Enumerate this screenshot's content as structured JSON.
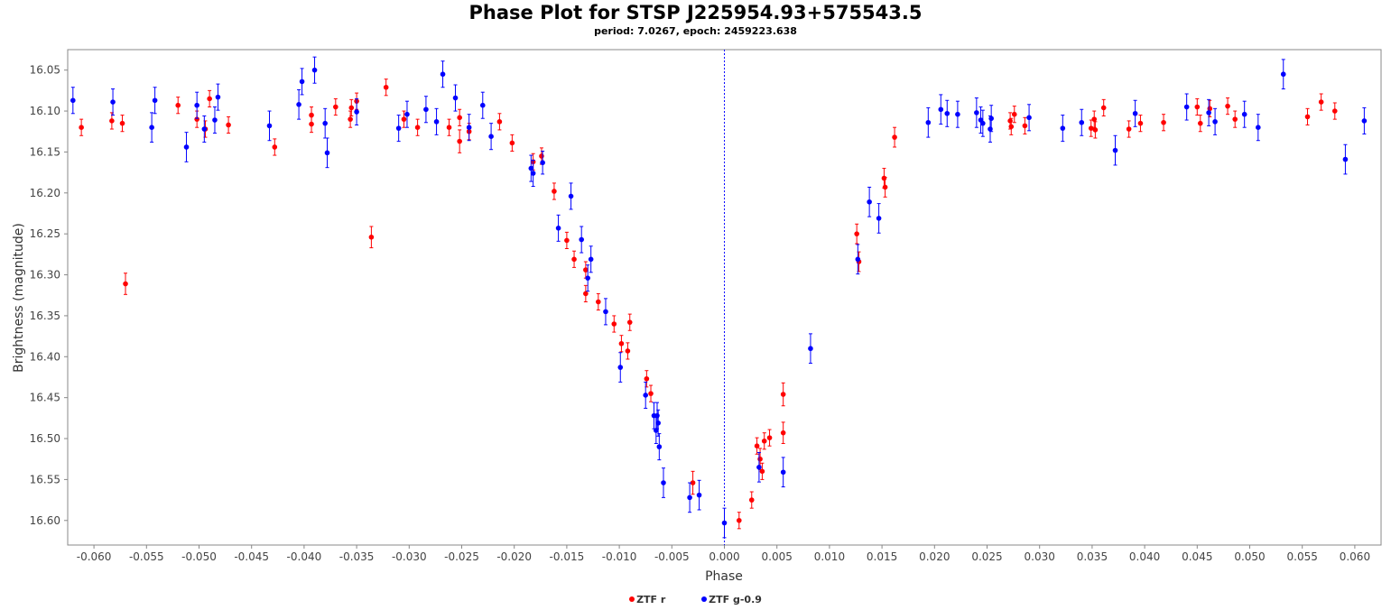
{
  "chart_data": {
    "type": "scatter",
    "title": "Phase Plot for STSP J225954.93+575543.5",
    "subtitle": "period: 7.0267, epoch: 2459223.638",
    "xlabel": "Phase",
    "ylabel": "Brightness (magnitude)",
    "xlim": [
      -0.0625,
      0.0625
    ],
    "ylim": [
      16.025,
      16.63
    ],
    "y_inverted": true,
    "x_ticks": [
      -0.06,
      -0.055,
      -0.05,
      -0.045,
      -0.04,
      -0.035,
      -0.03,
      -0.025,
      -0.02,
      -0.015,
      -0.01,
      -0.005,
      0.0,
      0.005,
      0.01,
      0.015,
      0.02,
      0.025,
      0.03,
      0.035,
      0.04,
      0.045,
      0.05,
      0.055,
      0.06
    ],
    "x_tick_labels": [
      "-0.060",
      "-0.055",
      "-0.050",
      "-0.045",
      "-0.040",
      "-0.035",
      "-0.030",
      "-0.025",
      "-0.020",
      "-0.015",
      "-0.010",
      "-0.005",
      "0.000",
      "0.005",
      "0.010",
      "0.015",
      "0.020",
      "0.025",
      "0.030",
      "0.035",
      "0.040",
      "0.045",
      "0.050",
      "0.055",
      "0.060"
    ],
    "y_ticks": [
      16.05,
      16.1,
      16.15,
      16.2,
      16.25,
      16.3,
      16.35,
      16.4,
      16.45,
      16.5,
      16.55,
      16.6
    ],
    "y_tick_labels": [
      "16.05",
      "16.10",
      "16.15",
      "16.20",
      "16.25",
      "16.30",
      "16.35",
      "16.40",
      "16.45",
      "16.50",
      "16.55",
      "16.60"
    ],
    "vertical_marker": 0.0,
    "grid": false,
    "legend_position": "bottom-center",
    "series": [
      {
        "name": "ZTF r",
        "color": "#ff0000",
        "points": [
          [
            -0.0612,
            16.12
          ],
          [
            -0.0583,
            16.112
          ],
          [
            -0.0573,
            16.115
          ],
          [
            -0.057,
            16.311
          ],
          [
            -0.052,
            16.093
          ],
          [
            -0.0502,
            16.11
          ],
          [
            -0.0494,
            16.122
          ],
          [
            -0.049,
            16.085
          ],
          [
            -0.0472,
            16.117
          ],
          [
            -0.0428,
            16.144
          ],
          [
            -0.0393,
            16.105
          ],
          [
            -0.0393,
            16.116
          ],
          [
            -0.037,
            16.095
          ],
          [
            -0.0356,
            16.11
          ],
          [
            -0.0355,
            16.096
          ],
          [
            -0.035,
            16.088
          ],
          [
            -0.0336,
            16.254
          ],
          [
            -0.0322,
            16.071
          ],
          [
            -0.0305,
            16.11
          ],
          [
            -0.0292,
            16.12
          ],
          [
            -0.0262,
            16.12
          ],
          [
            -0.0252,
            16.108
          ],
          [
            -0.0252,
            16.137
          ],
          [
            -0.0243,
            16.125
          ],
          [
            -0.0214,
            16.113
          ],
          [
            -0.0202,
            16.139
          ],
          [
            -0.0182,
            16.162
          ],
          [
            -0.0174,
            16.155
          ],
          [
            -0.0162,
            16.198
          ],
          [
            -0.015,
            16.258
          ],
          [
            -0.0143,
            16.281
          ],
          [
            -0.0132,
            16.294
          ],
          [
            -0.0132,
            16.323
          ],
          [
            -0.012,
            16.333
          ],
          [
            -0.0105,
            16.36
          ],
          [
            -0.0098,
            16.384
          ],
          [
            -0.0092,
            16.393
          ],
          [
            -0.009,
            16.358
          ],
          [
            -0.0074,
            16.427
          ],
          [
            -0.007,
            16.445
          ],
          [
            -0.003,
            16.554
          ],
          [
            0.0014,
            16.6
          ],
          [
            0.0026,
            16.575
          ],
          [
            0.0031,
            16.509
          ],
          [
            0.0034,
            16.525
          ],
          [
            0.0036,
            16.54
          ],
          [
            0.0038,
            16.503
          ],
          [
            0.0043,
            16.499
          ],
          [
            0.0056,
            16.446
          ],
          [
            0.0056,
            16.493
          ],
          [
            0.0126,
            16.25
          ],
          [
            0.0128,
            16.284
          ],
          [
            0.0152,
            16.182
          ],
          [
            0.0153,
            16.193
          ],
          [
            0.0162,
            16.132
          ],
          [
            0.0272,
            16.112
          ],
          [
            0.0273,
            16.119
          ],
          [
            0.0276,
            16.104
          ],
          [
            0.0286,
            16.118
          ],
          [
            0.0349,
            16.121
          ],
          [
            0.0352,
            16.11
          ],
          [
            0.0353,
            16.123
          ],
          [
            0.0361,
            16.096
          ],
          [
            0.0385,
            16.122
          ],
          [
            0.0396,
            16.115
          ],
          [
            0.0418,
            16.114
          ],
          [
            0.045,
            16.095
          ],
          [
            0.0453,
            16.115
          ],
          [
            0.0462,
            16.097
          ],
          [
            0.0479,
            16.094
          ],
          [
            0.0486,
            16.11
          ],
          [
            0.0555,
            16.107
          ],
          [
            0.0568,
            16.089
          ],
          [
            0.0581,
            16.1
          ]
        ],
        "errors": [
          0.01,
          0.01,
          0.01,
          0.013,
          0.01,
          0.01,
          0.01,
          0.01,
          0.01,
          0.01,
          0.01,
          0.01,
          0.01,
          0.01,
          0.01,
          0.01,
          0.013,
          0.01,
          0.01,
          0.01,
          0.01,
          0.01,
          0.014,
          0.01,
          0.01,
          0.01,
          0.01,
          0.01,
          0.01,
          0.01,
          0.01,
          0.01,
          0.01,
          0.01,
          0.01,
          0.01,
          0.01,
          0.01,
          0.01,
          0.01,
          0.014,
          0.01,
          0.01,
          0.01,
          0.013,
          0.01,
          0.01,
          0.01,
          0.014,
          0.013,
          0.012,
          0.012,
          0.012,
          0.012,
          0.012,
          0.01,
          0.01,
          0.01,
          0.01,
          0.01,
          0.01,
          0.01,
          0.01,
          0.01,
          0.01,
          0.01,
          0.01,
          0.01,
          0.01,
          0.01,
          0.01,
          0.01,
          0.01,
          0.01
        ]
      },
      {
        "name": "ZTF g-0.9",
        "color": "#0000ff",
        "points": [
          [
            -0.062,
            16.087
          ],
          [
            -0.0582,
            16.089
          ],
          [
            -0.0545,
            16.12
          ],
          [
            -0.0542,
            16.087
          ],
          [
            -0.0512,
            16.144
          ],
          [
            -0.0502,
            16.093
          ],
          [
            -0.0495,
            16.122
          ],
          [
            -0.0485,
            16.111
          ],
          [
            -0.0482,
            16.083
          ],
          [
            -0.0433,
            16.118
          ],
          [
            -0.0405,
            16.092
          ],
          [
            -0.0402,
            16.064
          ],
          [
            -0.039,
            16.05
          ],
          [
            -0.038,
            16.115
          ],
          [
            -0.0378,
            16.151
          ],
          [
            -0.035,
            16.101
          ],
          [
            -0.031,
            16.121
          ],
          [
            -0.0302,
            16.104
          ],
          [
            -0.0284,
            16.098
          ],
          [
            -0.0274,
            16.113
          ],
          [
            -0.0268,
            16.055
          ],
          [
            -0.0256,
            16.084
          ],
          [
            -0.0243,
            16.12
          ],
          [
            -0.023,
            16.093
          ],
          [
            -0.0222,
            16.131
          ],
          [
            -0.0184,
            16.17
          ],
          [
            -0.0182,
            16.176
          ],
          [
            -0.0173,
            16.163
          ],
          [
            -0.0158,
            16.243
          ],
          [
            -0.0146,
            16.204
          ],
          [
            -0.0136,
            16.257
          ],
          [
            -0.013,
            16.304
          ],
          [
            -0.0127,
            16.281
          ],
          [
            -0.0113,
            16.345
          ],
          [
            -0.0099,
            16.413
          ],
          [
            -0.0075,
            16.447
          ],
          [
            -0.0067,
            16.472
          ],
          [
            -0.0065,
            16.49
          ],
          [
            -0.0064,
            16.472
          ],
          [
            -0.0063,
            16.481
          ],
          [
            -0.0062,
            16.51
          ],
          [
            -0.0058,
            16.554
          ],
          [
            -0.0033,
            16.572
          ],
          [
            -0.0024,
            16.569
          ],
          [
            0.0,
            16.603
          ],
          [
            0.0033,
            16.535
          ],
          [
            0.0056,
            16.541
          ],
          [
            0.0082,
            16.39
          ],
          [
            0.0127,
            16.281
          ],
          [
            0.0138,
            16.211
          ],
          [
            0.0147,
            16.231
          ],
          [
            0.0194,
            16.114
          ],
          [
            0.0206,
            16.098
          ],
          [
            0.0212,
            16.103
          ],
          [
            0.0222,
            16.104
          ],
          [
            0.024,
            16.102
          ],
          [
            0.0244,
            16.111
          ],
          [
            0.0246,
            16.115
          ],
          [
            0.0253,
            16.122
          ],
          [
            0.0254,
            16.109
          ],
          [
            0.029,
            16.108
          ],
          [
            0.0322,
            16.121
          ],
          [
            0.034,
            16.114
          ],
          [
            0.0372,
            16.148
          ],
          [
            0.0391,
            16.103
          ],
          [
            0.044,
            16.095
          ],
          [
            0.0461,
            16.102
          ],
          [
            0.0467,
            16.113
          ],
          [
            0.0495,
            16.104
          ],
          [
            0.0508,
            16.12
          ],
          [
            0.0532,
            16.055
          ],
          [
            0.0591,
            16.159
          ],
          [
            0.0609,
            16.112
          ]
        ],
        "errors": [
          0.016,
          0.016,
          0.018,
          0.016,
          0.018,
          0.016,
          0.016,
          0.016,
          0.016,
          0.018,
          0.018,
          0.016,
          0.016,
          0.018,
          0.018,
          0.016,
          0.016,
          0.016,
          0.016,
          0.016,
          0.016,
          0.016,
          0.016,
          0.016,
          0.016,
          0.016,
          0.016,
          0.014,
          0.016,
          0.016,
          0.016,
          0.016,
          0.016,
          0.016,
          0.018,
          0.016,
          0.016,
          0.016,
          0.016,
          0.016,
          0.016,
          0.018,
          0.018,
          0.018,
          0.018,
          0.018,
          0.018,
          0.018,
          0.018,
          0.018,
          0.018,
          0.018,
          0.018,
          0.016,
          0.016,
          0.018,
          0.016,
          0.016,
          0.016,
          0.016,
          0.016,
          0.016,
          0.016,
          0.018,
          0.016,
          0.016,
          0.016,
          0.016,
          0.016,
          0.016,
          0.018,
          0.018,
          0.016
        ]
      }
    ]
  }
}
